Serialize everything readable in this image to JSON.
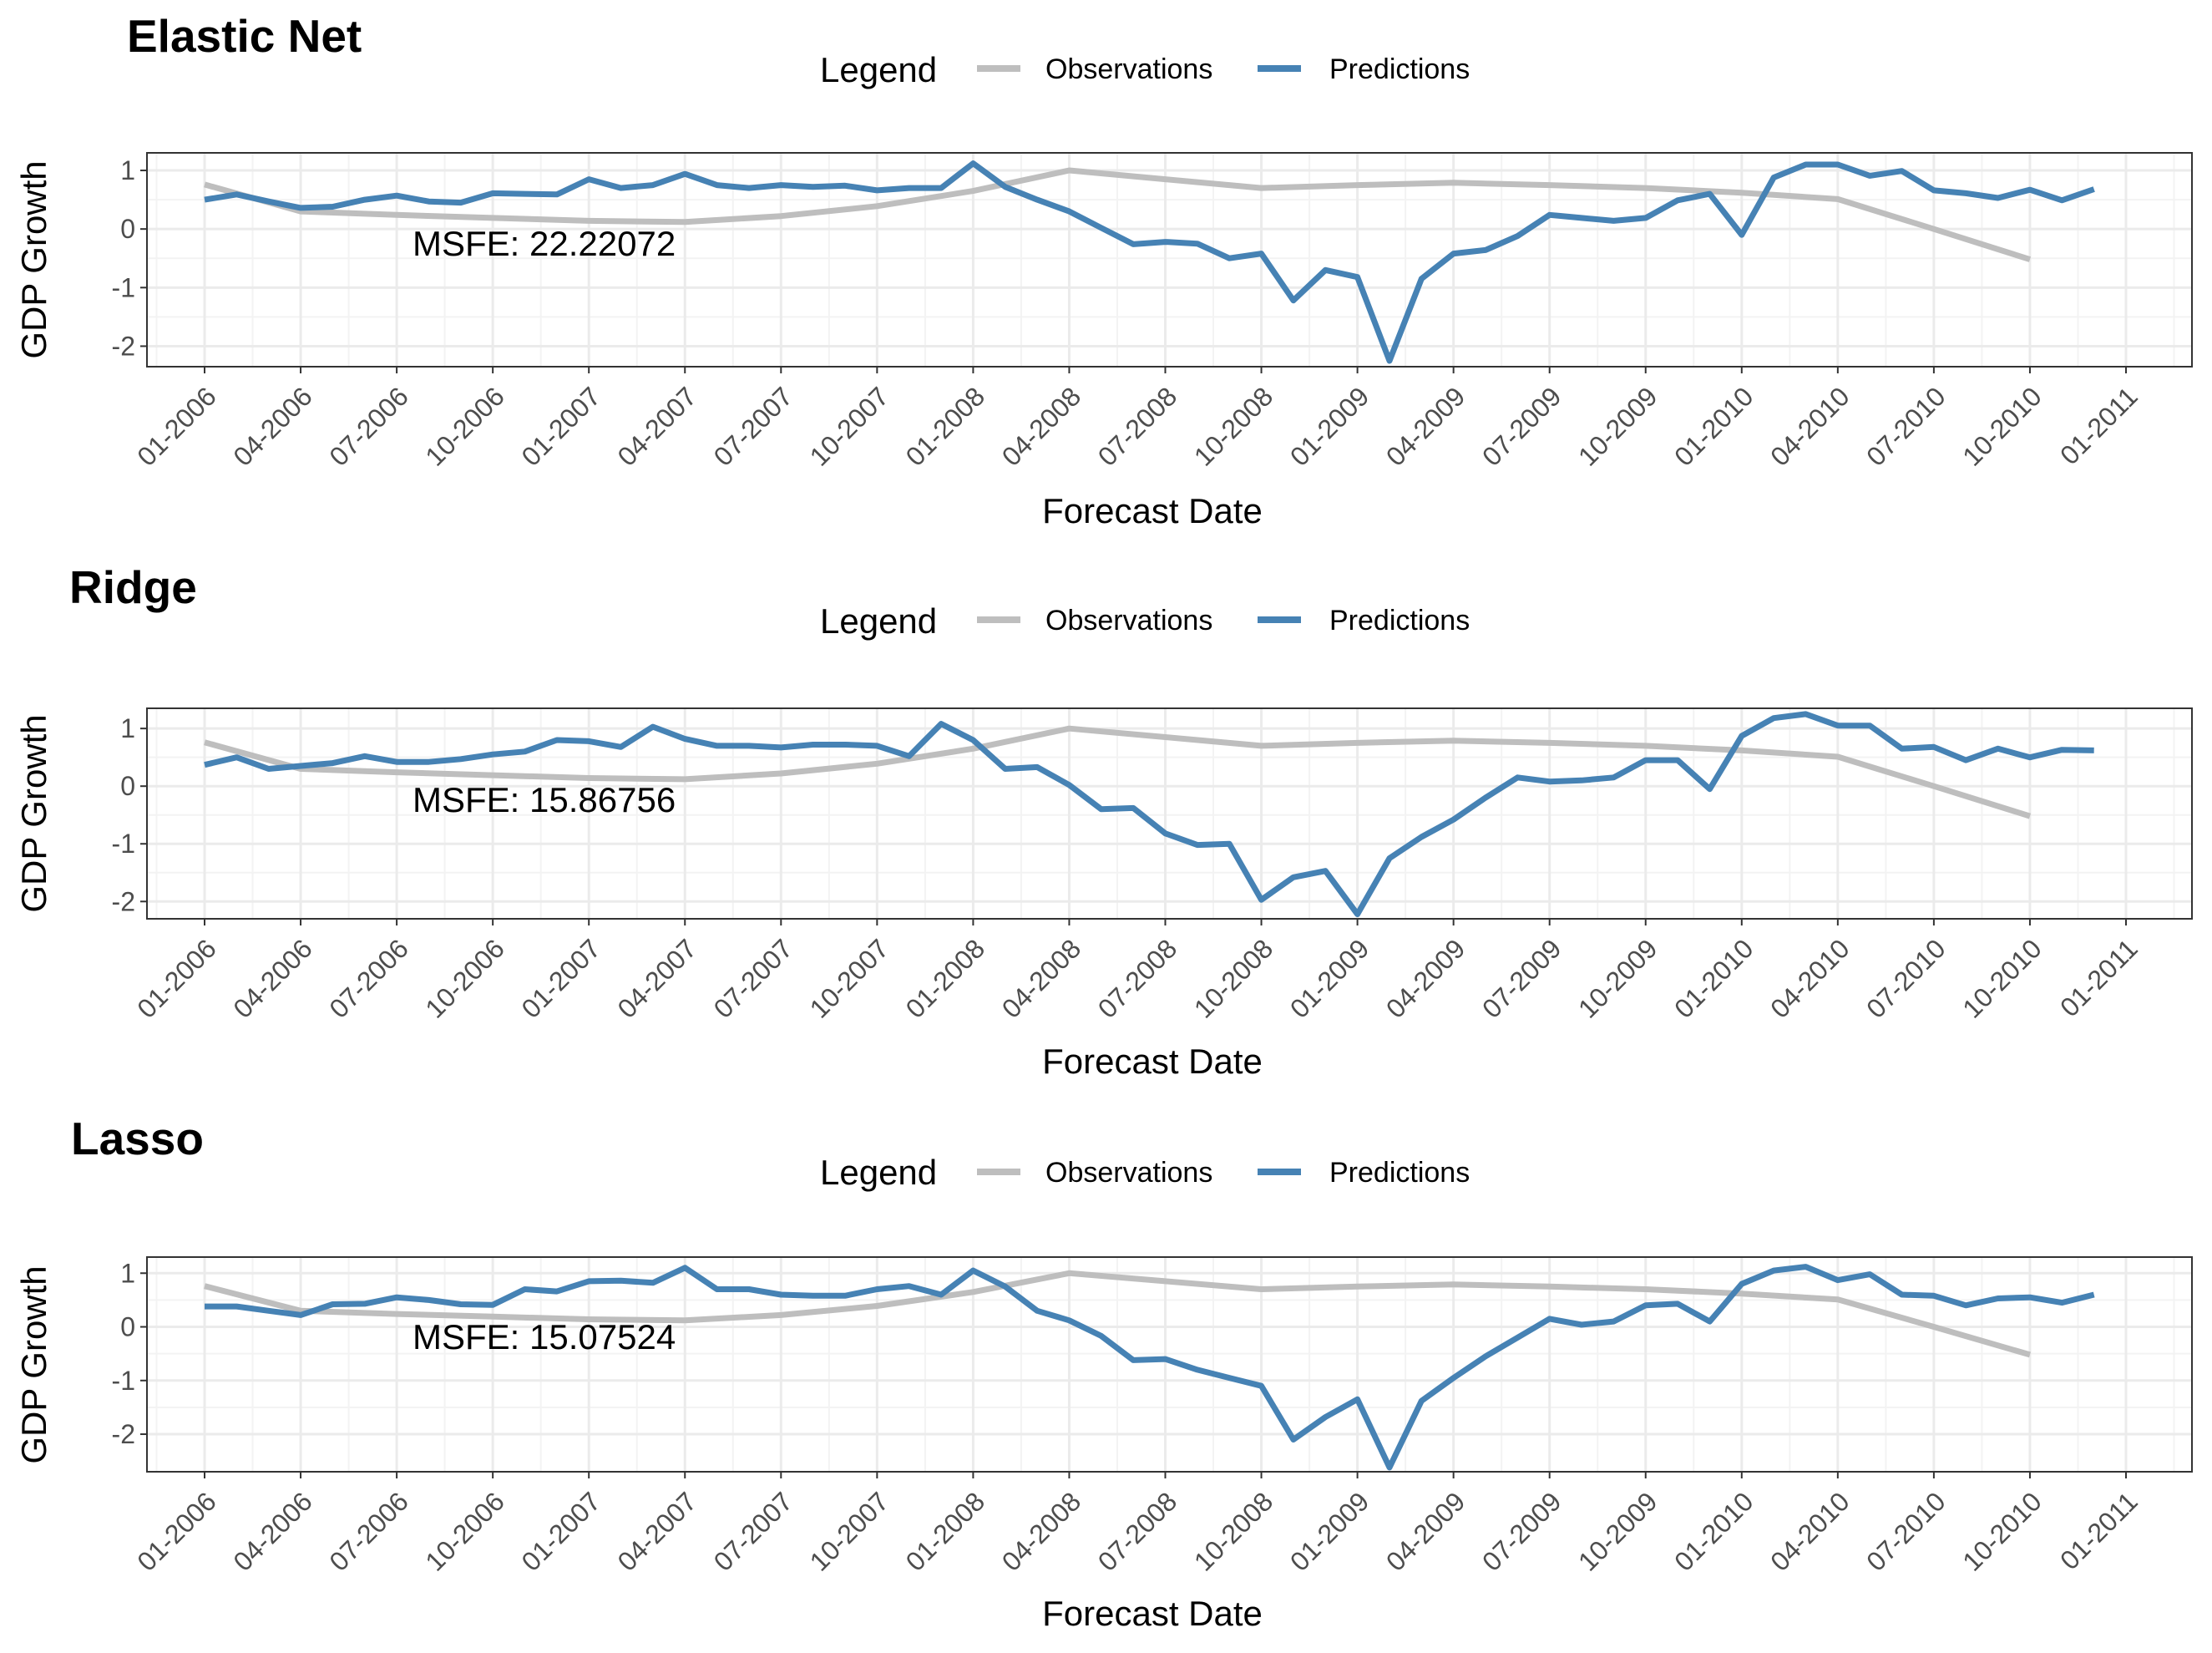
{
  "chart_data": [
    {
      "type": "line",
      "title": "Elastic Net",
      "xlabel": "Forecast Date",
      "ylabel": "GDP Growth",
      "legend_title": "Legend",
      "legend_position": "top",
      "annotation": "MSFE: 22.22072",
      "grid": true,
      "x_tick_labels": [
        "01-2006",
        "04-2006",
        "07-2006",
        "10-2006",
        "01-2007",
        "04-2007",
        "07-2007",
        "10-2007",
        "01-2008",
        "04-2008",
        "07-2008",
        "10-2008",
        "01-2009",
        "04-2009",
        "07-2009",
        "10-2009",
        "01-2010",
        "04-2010",
        "07-2010",
        "10-2010",
        "01-2011"
      ],
      "y_ticks": [
        1,
        0,
        -1,
        -2
      ],
      "y_tick_labels": [
        "1",
        "0",
        "-1",
        "-2"
      ],
      "ylim": [
        -2.35,
        1.3
      ],
      "series": [
        {
          "name": "Observations",
          "color": "#bebebe",
          "x": [
            "2006-01",
            "2006-04",
            "2006-07",
            "2006-10",
            "2007-01",
            "2007-04",
            "2007-07",
            "2007-10",
            "2008-01",
            "2008-04",
            "2008-07",
            "2008-10",
            "2009-01",
            "2009-04",
            "2009-07",
            "2009-10",
            "2010-01",
            "2010-04",
            "2010-07",
            "2010-10"
          ],
          "values": [
            0.76,
            0.3,
            0.24,
            0.19,
            0.14,
            0.12,
            0.22,
            0.39,
            0.65,
            1.0,
            0.85,
            0.7,
            0.75,
            0.79,
            0.75,
            0.7,
            0.62,
            0.51,
            0.0,
            -0.52
          ]
        },
        {
          "name": "Predictions",
          "color": "#4682b4",
          "x": [
            "2006-01",
            "2006-02",
            "2006-03",
            "2006-04",
            "2006-05",
            "2006-06",
            "2006-07",
            "2006-08",
            "2006-09",
            "2006-10",
            "2006-11",
            "2006-12",
            "2007-01",
            "2007-02",
            "2007-03",
            "2007-04",
            "2007-05",
            "2007-06",
            "2007-07",
            "2007-08",
            "2007-09",
            "2007-10",
            "2007-11",
            "2007-12",
            "2008-01",
            "2008-02",
            "2008-03",
            "2008-04",
            "2008-05",
            "2008-06",
            "2008-07",
            "2008-08",
            "2008-09",
            "2008-10",
            "2008-11",
            "2008-12",
            "2009-01",
            "2009-02",
            "2009-03",
            "2009-04",
            "2009-05",
            "2009-06",
            "2009-07",
            "2009-08",
            "2009-09",
            "2009-10",
            "2009-11",
            "2009-12",
            "2010-01",
            "2010-02",
            "2010-03",
            "2010-04",
            "2010-05",
            "2010-06",
            "2010-07",
            "2010-08",
            "2010-09",
            "2010-10",
            "2010-11",
            "2010-12"
          ],
          "values": [
            0.5,
            0.59,
            0.47,
            0.36,
            0.38,
            0.5,
            0.57,
            0.47,
            0.45,
            0.61,
            0.6,
            0.59,
            0.85,
            0.7,
            0.75,
            0.94,
            0.75,
            0.7,
            0.75,
            0.72,
            0.74,
            0.66,
            0.7,
            0.7,
            1.12,
            0.72,
            0.5,
            0.3,
            0.02,
            -0.26,
            -0.22,
            -0.25,
            -0.5,
            -0.42,
            -1.22,
            -0.7,
            -0.82,
            -2.25,
            -0.85,
            -0.42,
            -0.36,
            -0.12,
            0.24,
            0.19,
            0.14,
            0.19,
            0.49,
            0.6,
            -0.1,
            0.88,
            1.1,
            1.1,
            0.91,
            0.99,
            0.66,
            0.61,
            0.53,
            0.67,
            0.49,
            0.68
          ]
        }
      ]
    },
    {
      "type": "line",
      "title": "Ridge",
      "xlabel": "Forecast Date",
      "ylabel": "GDP Growth",
      "legend_title": "Legend",
      "legend_position": "top",
      "annotation": "MSFE: 15.86756",
      "grid": true,
      "x_tick_labels": [
        "01-2006",
        "04-2006",
        "07-2006",
        "10-2006",
        "01-2007",
        "04-2007",
        "07-2007",
        "10-2007",
        "01-2008",
        "04-2008",
        "07-2008",
        "10-2008",
        "01-2009",
        "04-2009",
        "07-2009",
        "10-2009",
        "01-2010",
        "04-2010",
        "07-2010",
        "10-2010",
        "01-2011"
      ],
      "y_ticks": [
        1,
        0,
        -1,
        -2
      ],
      "y_tick_labels": [
        "1",
        "0",
        "-1",
        "-2"
      ],
      "ylim": [
        -2.3,
        1.35
      ],
      "series": [
        {
          "name": "Observations",
          "color": "#bebebe",
          "x": [
            "2006-01",
            "2006-04",
            "2006-07",
            "2006-10",
            "2007-01",
            "2007-04",
            "2007-07",
            "2007-10",
            "2008-01",
            "2008-04",
            "2008-07",
            "2008-10",
            "2009-01",
            "2009-04",
            "2009-07",
            "2009-10",
            "2010-01",
            "2010-04",
            "2010-07",
            "2010-10"
          ],
          "values": [
            0.76,
            0.3,
            0.24,
            0.19,
            0.14,
            0.12,
            0.22,
            0.39,
            0.65,
            1.0,
            0.85,
            0.7,
            0.75,
            0.79,
            0.75,
            0.7,
            0.62,
            0.51,
            0.0,
            -0.52
          ]
        },
        {
          "name": "Predictions",
          "color": "#4682b4",
          "x": [
            "2006-01",
            "2006-02",
            "2006-03",
            "2006-04",
            "2006-05",
            "2006-06",
            "2006-07",
            "2006-08",
            "2006-09",
            "2006-10",
            "2006-11",
            "2006-12",
            "2007-01",
            "2007-02",
            "2007-03",
            "2007-04",
            "2007-05",
            "2007-06",
            "2007-07",
            "2007-08",
            "2007-09",
            "2007-10",
            "2007-11",
            "2007-12",
            "2008-01",
            "2008-02",
            "2008-03",
            "2008-04",
            "2008-05",
            "2008-06",
            "2008-07",
            "2008-08",
            "2008-09",
            "2008-10",
            "2008-11",
            "2008-12",
            "2009-01",
            "2009-02",
            "2009-03",
            "2009-04",
            "2009-05",
            "2009-06",
            "2009-07",
            "2009-08",
            "2009-09",
            "2009-10",
            "2009-11",
            "2009-12",
            "2010-01",
            "2010-02",
            "2010-03",
            "2010-04",
            "2010-05",
            "2010-06",
            "2010-07",
            "2010-08",
            "2010-09",
            "2010-10",
            "2010-11",
            "2010-12"
          ],
          "values": [
            0.37,
            0.5,
            0.3,
            0.35,
            0.4,
            0.52,
            0.42,
            0.42,
            0.47,
            0.55,
            0.6,
            0.8,
            0.78,
            0.68,
            1.03,
            0.82,
            0.7,
            0.7,
            0.67,
            0.72,
            0.72,
            0.7,
            0.52,
            1.08,
            0.8,
            0.3,
            0.33,
            0.02,
            -0.4,
            -0.38,
            -0.82,
            -1.02,
            -1.0,
            -1.97,
            -1.58,
            -1.47,
            -2.22,
            -1.25,
            -0.88,
            -0.58,
            -0.2,
            0.15,
            0.08,
            0.1,
            0.15,
            0.45,
            0.45,
            -0.05,
            0.87,
            1.18,
            1.25,
            1.05,
            1.05,
            0.65,
            0.68,
            0.45,
            0.65,
            0.5,
            0.63,
            0.62
          ]
        }
      ]
    },
    {
      "type": "line",
      "title": "Lasso",
      "xlabel": "Forecast Date",
      "ylabel": "GDP Growth",
      "legend_title": "Legend",
      "legend_position": "top",
      "annotation": "MSFE: 15.07524",
      "grid": true,
      "x_tick_labels": [
        "01-2006",
        "04-2006",
        "07-2006",
        "10-2006",
        "01-2007",
        "04-2007",
        "07-2007",
        "10-2007",
        "01-2008",
        "04-2008",
        "07-2008",
        "10-2008",
        "01-2009",
        "04-2009",
        "07-2009",
        "10-2009",
        "01-2010",
        "04-2010",
        "07-2010",
        "10-2010",
        "01-2011"
      ],
      "y_ticks": [
        1,
        0,
        -1,
        -2
      ],
      "y_tick_labels": [
        "1",
        "0",
        "-1",
        "-2"
      ],
      "ylim": [
        -2.7,
        1.3
      ],
      "series": [
        {
          "name": "Observations",
          "color": "#bebebe",
          "x": [
            "2006-01",
            "2006-04",
            "2006-07",
            "2006-10",
            "2007-01",
            "2007-04",
            "2007-07",
            "2007-10",
            "2008-01",
            "2008-04",
            "2008-07",
            "2008-10",
            "2009-01",
            "2009-04",
            "2009-07",
            "2009-10",
            "2010-01",
            "2010-04",
            "2010-07",
            "2010-10"
          ],
          "values": [
            0.76,
            0.3,
            0.24,
            0.19,
            0.14,
            0.12,
            0.22,
            0.39,
            0.65,
            1.0,
            0.85,
            0.7,
            0.75,
            0.79,
            0.75,
            0.7,
            0.62,
            0.51,
            0.0,
            -0.52
          ]
        },
        {
          "name": "Predictions",
          "color": "#4682b4",
          "x": [
            "2006-01",
            "2006-02",
            "2006-03",
            "2006-04",
            "2006-05",
            "2006-06",
            "2006-07",
            "2006-08",
            "2006-09",
            "2006-10",
            "2006-11",
            "2006-12",
            "2007-01",
            "2007-02",
            "2007-03",
            "2007-04",
            "2007-05",
            "2007-06",
            "2007-07",
            "2007-08",
            "2007-09",
            "2007-10",
            "2007-11",
            "2007-12",
            "2008-01",
            "2008-02",
            "2008-03",
            "2008-04",
            "2008-05",
            "2008-06",
            "2008-07",
            "2008-08",
            "2008-09",
            "2008-10",
            "2008-11",
            "2008-12",
            "2009-01",
            "2009-02",
            "2009-03",
            "2009-04",
            "2009-05",
            "2009-06",
            "2009-07",
            "2009-08",
            "2009-09",
            "2009-10",
            "2009-11",
            "2009-12",
            "2010-01",
            "2010-02",
            "2010-03",
            "2010-04",
            "2010-05",
            "2010-06",
            "2010-07",
            "2010-08",
            "2010-09",
            "2010-10",
            "2010-11",
            "2010-12"
          ],
          "values": [
            0.38,
            0.38,
            0.3,
            0.22,
            0.42,
            0.43,
            0.55,
            0.5,
            0.42,
            0.41,
            0.7,
            0.66,
            0.85,
            0.86,
            0.82,
            1.1,
            0.7,
            0.7,
            0.6,
            0.58,
            0.58,
            0.7,
            0.76,
            0.6,
            1.05,
            0.75,
            0.3,
            0.12,
            -0.17,
            -0.62,
            -0.6,
            -0.8,
            -0.95,
            -1.1,
            -2.1,
            -1.68,
            -1.35,
            -2.62,
            -1.38,
            -0.95,
            -0.55,
            -0.2,
            0.15,
            0.04,
            0.1,
            0.4,
            0.43,
            0.1,
            0.8,
            1.05,
            1.12,
            0.87,
            0.98,
            0.6,
            0.58,
            0.4,
            0.53,
            0.55,
            0.45,
            0.6
          ]
        }
      ]
    }
  ]
}
